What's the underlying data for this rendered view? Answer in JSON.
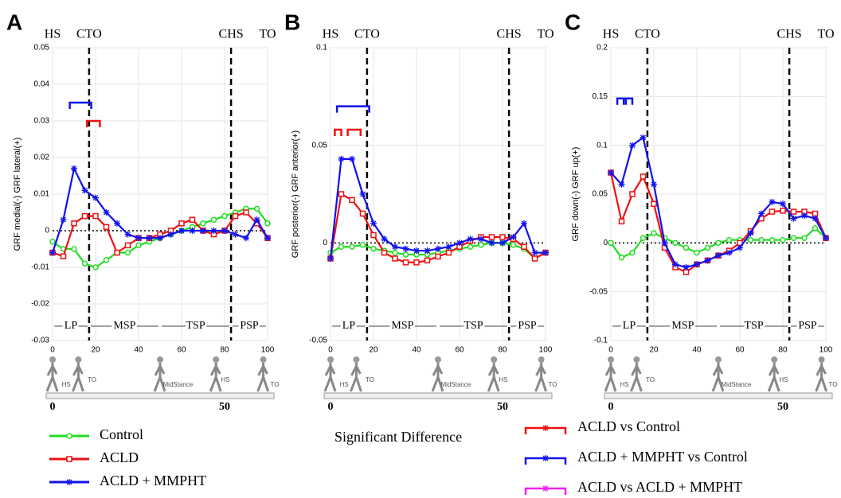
{
  "chart_data": [
    {
      "type": "line",
      "panel": "A",
      "ylabel": "GRF medial(-)  GRF lateral(+)",
      "x": [
        0,
        5,
        10,
        15,
        20,
        25,
        30,
        35,
        40,
        45,
        50,
        55,
        60,
        65,
        70,
        75,
        80,
        85,
        90,
        95,
        100
      ],
      "xlim": [
        0,
        100
      ],
      "xticks": [
        0,
        20,
        40,
        60,
        80,
        100
      ],
      "ylim": [
        -0.03,
        0.05
      ],
      "yticks": [
        -0.03,
        -0.02,
        -0.01,
        0,
        0.01,
        0.02,
        0.03,
        0.04,
        0.05
      ],
      "series": [
        {
          "name": "Control",
          "color": "#22dd22",
          "marker": "circle",
          "values": [
            -0.003,
            -0.005,
            -0.005,
            -0.009,
            -0.01,
            -0.008,
            -0.006,
            -0.006,
            -0.004,
            -0.003,
            -0.002,
            -0.001,
            0,
            0.001,
            0.002,
            0.003,
            0.004,
            0.005,
            0.006,
            0.006,
            0.002
          ]
        },
        {
          "name": "ACLD",
          "color": "#ee1111",
          "marker": "square",
          "values": [
            -0.006,
            -0.007,
            0.002,
            0.004,
            0.004,
            0.001,
            -0.006,
            -0.004,
            -0.002,
            -0.002,
            -0.001,
            0,
            0.002,
            0.003,
            0,
            -0.001,
            0,
            0.004,
            0.005,
            0.002,
            -0.002
          ]
        },
        {
          "name": "ACLD + MMPHT",
          "color": "#1111ee",
          "marker": "star",
          "values": [
            -0.006,
            0.003,
            0.017,
            0.011,
            0.009,
            0.005,
            0.002,
            -0.001,
            -0.002,
            -0.002,
            -0.002,
            -0.001,
            0,
            0,
            0,
            0,
            0,
            -0.001,
            -0.002,
            0.003,
            -0.002
          ]
        }
      ],
      "events": [
        {
          "label": "HS",
          "x": 0
        },
        {
          "label": "CTO",
          "x": 17,
          "line": true
        },
        {
          "label": "CHS",
          "x": 83,
          "line": true
        },
        {
          "label": "TO",
          "x": 100
        }
      ],
      "phases": [
        {
          "label": "LP",
          "x0": 0,
          "x1": 17
        },
        {
          "label": "MSP",
          "x0": 17,
          "x1": 50
        },
        {
          "label": "TSP",
          "x0": 50,
          "x1": 83
        },
        {
          "label": "PSP",
          "x0": 83,
          "x1": 100
        }
      ],
      "brackets": [
        {
          "x0": 8,
          "x1": 18,
          "y": 0.035,
          "color": "#1111ee"
        },
        {
          "x0": 16,
          "x1": 22,
          "y": 0.03,
          "color": "#ee1111"
        }
      ],
      "gait_xlim": [
        0,
        62.5
      ],
      "gait_xticks": [
        0,
        50
      ],
      "gait_labels": [
        "HS",
        "TO",
        "MidStance",
        "HS",
        "TO"
      ]
    },
    {
      "type": "line",
      "panel": "B",
      "ylabel": "GRF posterior(-)  GRF anterior(+)",
      "x": [
        0,
        5,
        10,
        15,
        20,
        25,
        30,
        35,
        40,
        45,
        50,
        55,
        60,
        65,
        70,
        75,
        80,
        85,
        90,
        95,
        100
      ],
      "xlim": [
        0,
        100
      ],
      "xticks": [
        0,
        20,
        40,
        60,
        80,
        100
      ],
      "ylim": [
        -0.05,
        0.1
      ],
      "yticks": [
        -0.05,
        0,
        0.05,
        0.1
      ],
      "series": [
        {
          "name": "Control",
          "color": "#22dd22",
          "marker": "circle",
          "values": [
            -0.005,
            -0.002,
            -0.002,
            -0.001,
            -0.003,
            -0.004,
            -0.005,
            -0.006,
            -0.006,
            -0.006,
            -0.005,
            -0.004,
            -0.003,
            -0.002,
            -0.001,
            0,
            0,
            -0.001,
            -0.003,
            -0.008,
            -0.005
          ]
        },
        {
          "name": "ACLD",
          "color": "#ee1111",
          "marker": "square",
          "values": [
            -0.008,
            0.025,
            0.022,
            0.015,
            0.004,
            -0.005,
            -0.008,
            -0.01,
            -0.01,
            -0.009,
            -0.007,
            -0.005,
            -0.002,
            0.001,
            0.003,
            0.003,
            0.003,
            0.002,
            -0.002,
            -0.008,
            -0.005
          ]
        },
        {
          "name": "ACLD + MMPHT",
          "color": "#1111ee",
          "marker": "star",
          "values": [
            -0.008,
            0.043,
            0.043,
            0.025,
            0.01,
            0.002,
            -0.002,
            -0.003,
            -0.004,
            -0.004,
            -0.003,
            -0.002,
            0,
            0.002,
            0.002,
            0,
            0,
            0.003,
            0.01,
            -0.005,
            -0.005
          ]
        }
      ],
      "events": [
        {
          "label": "HS",
          "x": 0
        },
        {
          "label": "CTO",
          "x": 17,
          "line": true
        },
        {
          "label": "CHS",
          "x": 83,
          "line": true
        },
        {
          "label": "TO",
          "x": 100
        }
      ],
      "phases": [
        {
          "label": "LP",
          "x0": 0,
          "x1": 17
        },
        {
          "label": "MSP",
          "x0": 17,
          "x1": 50
        },
        {
          "label": "TSP",
          "x0": 50,
          "x1": 83
        },
        {
          "label": "PSP",
          "x0": 83,
          "x1": 100
        }
      ],
      "brackets": [
        {
          "x0": 3,
          "x1": 18,
          "y": 0.07,
          "color": "#1111ee"
        },
        {
          "x0": 2,
          "x1": 5,
          "y": 0.058,
          "color": "#ee1111"
        },
        {
          "x0": 8,
          "x1": 14,
          "y": 0.058,
          "color": "#ee1111"
        }
      ],
      "gait_xlim": [
        0,
        62.5
      ],
      "gait_xticks": [
        0,
        50
      ],
      "gait_labels": [
        "HS",
        "TO",
        "MidStance",
        "HS",
        "TO"
      ]
    },
    {
      "type": "line",
      "panel": "C",
      "ylabel": "GRF down(-)  GRF up(+)",
      "x": [
        0,
        5,
        10,
        15,
        20,
        25,
        30,
        35,
        40,
        45,
        50,
        55,
        60,
        65,
        70,
        75,
        80,
        85,
        90,
        95,
        100
      ],
      "xlim": [
        0,
        100
      ],
      "xticks": [
        0,
        20,
        40,
        60,
        80,
        100
      ],
      "ylim": [
        -0.1,
        0.2
      ],
      "yticks": [
        -0.1,
        -0.05,
        0,
        0.05,
        0.1,
        0.15,
        0.2
      ],
      "series": [
        {
          "name": "Control",
          "color": "#22dd22",
          "marker": "circle",
          "values": [
            0,
            -0.015,
            -0.01,
            0.005,
            0.01,
            0.005,
            0,
            -0.005,
            -0.01,
            -0.005,
            0,
            0.003,
            0.003,
            0.003,
            0.003,
            0.003,
            0.003,
            0.005,
            0.005,
            0.015,
            0.005
          ]
        },
        {
          "name": "ACLD",
          "color": "#ee1111",
          "marker": "square",
          "values": [
            0.072,
            0.022,
            0.05,
            0.068,
            0.04,
            -0.005,
            -0.025,
            -0.03,
            -0.022,
            -0.018,
            -0.013,
            -0.008,
            0,
            0.012,
            0.025,
            0.032,
            0.033,
            0.032,
            0.032,
            0.03,
            0.005
          ]
        },
        {
          "name": "ACLD + MMPHT",
          "color": "#1111ee",
          "marker": "star",
          "values": [
            0.072,
            0.06,
            0.1,
            0.108,
            0.06,
            0,
            -0.022,
            -0.025,
            -0.022,
            -0.018,
            -0.013,
            -0.01,
            -0.005,
            0.01,
            0.03,
            0.042,
            0.04,
            0.025,
            0.028,
            0.025,
            0.005
          ]
        }
      ],
      "events": [
        {
          "label": "HS",
          "x": 0
        },
        {
          "label": "CTO",
          "x": 17,
          "line": true
        },
        {
          "label": "CHS",
          "x": 83,
          "line": true
        },
        {
          "label": "TO",
          "x": 100
        }
      ],
      "phases": [
        {
          "label": "LP",
          "x0": 0,
          "x1": 17
        },
        {
          "label": "MSP",
          "x0": 17,
          "x1": 50
        },
        {
          "label": "TSP",
          "x0": 50,
          "x1": 83
        },
        {
          "label": "PSP",
          "x0": 83,
          "x1": 100
        }
      ],
      "brackets": [
        {
          "x0": 3,
          "x1": 7,
          "y": 0.148,
          "color": "#1111ee"
        },
        {
          "x0": 6,
          "x1": 10,
          "y": 0.148,
          "color": "#1111ee"
        }
      ],
      "gait_xlim": [
        0,
        62.5
      ],
      "gait_xticks": [
        0,
        50
      ],
      "gait_labels": [
        "HS",
        "TO",
        "MidStance",
        "HS",
        "TO"
      ]
    }
  ],
  "significance_legend": {
    "title": "Significant Difference",
    "items": [
      {
        "label": "ACLD vs Control",
        "color": "#ee1111"
      },
      {
        "label": "ACLD + MMPHT vs Control",
        "color": "#1111ee"
      },
      {
        "label": "ACLD vs ACLD + MMPHT",
        "color": "#ee22ee"
      }
    ]
  }
}
